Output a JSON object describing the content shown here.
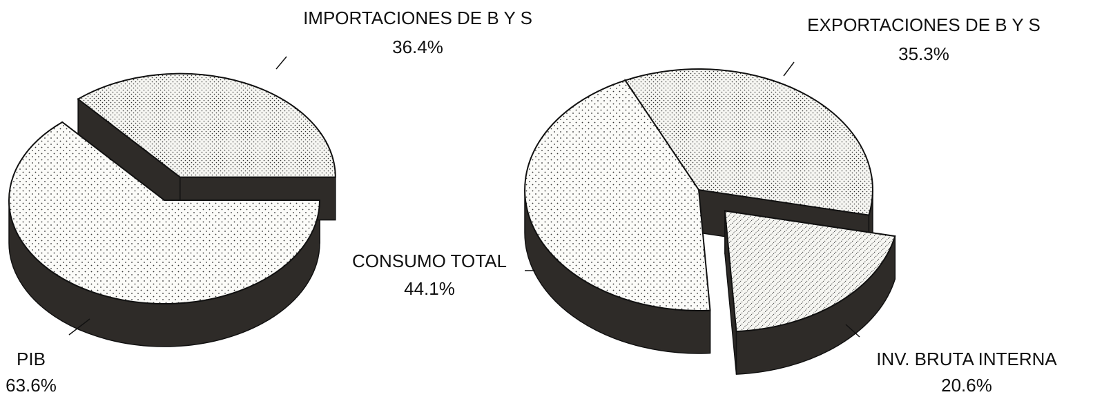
{
  "chart_data": [
    {
      "type": "pie",
      "categories": [
        "PIB",
        "IMPORTACIONES DE B Y S"
      ],
      "values": [
        63.6,
        36.4
      ],
      "value_labels": [
        "63.6%",
        "36.4%"
      ]
    },
    {
      "type": "pie",
      "categories": [
        "EXPORTACIONES DE B Y S",
        "INV. BRUTA INTERNA",
        "CONSUMO TOTAL"
      ],
      "values": [
        35.3,
        20.6,
        44.1
      ],
      "value_labels": [
        "35.3%",
        "20.6%",
        "44.1%"
      ]
    }
  ]
}
